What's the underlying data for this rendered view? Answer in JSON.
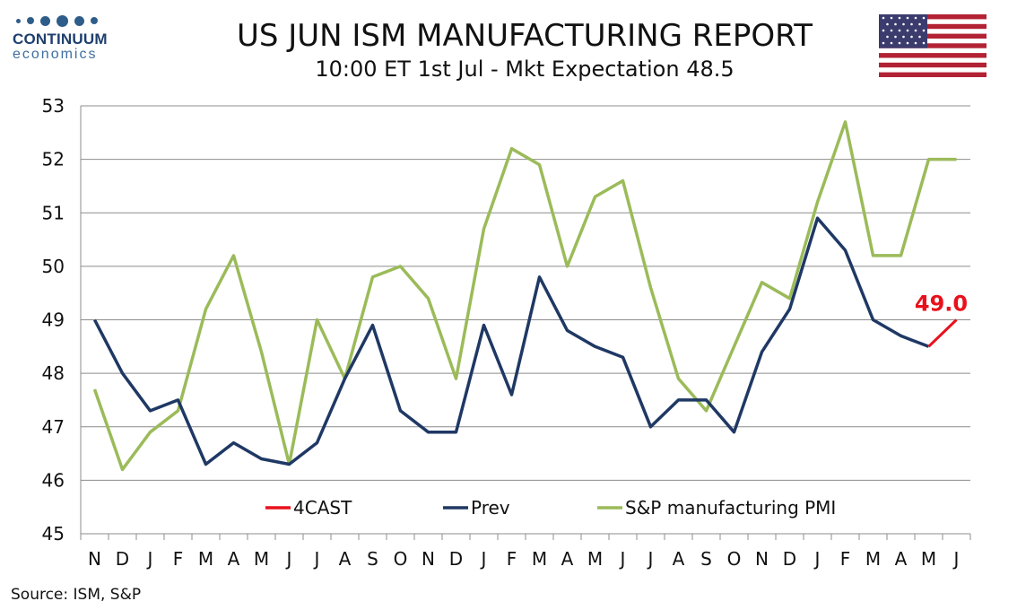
{
  "header": {
    "logo_name": "CONTINUUM",
    "logo_sub": "economics",
    "title": "US JUN ISM MANUFACTURING REPORT",
    "subtitle": "10:00 ET 1st Jul - Mkt Expectation 48.5",
    "flag_icon": "us-flag-icon",
    "logo_dot_color": "#2f5d8a"
  },
  "source": "Source: ISM, S&P",
  "chart_data": {
    "type": "line",
    "categories": [
      "N",
      "D",
      "J",
      "F",
      "M",
      "A",
      "M",
      "J",
      "J",
      "A",
      "S",
      "O",
      "N",
      "D",
      "J",
      "F",
      "M",
      "A",
      "M",
      "J",
      "J",
      "A",
      "S",
      "O",
      "N",
      "D",
      "J",
      "F",
      "M",
      "A",
      "M",
      "J"
    ],
    "ylim": [
      45,
      53
    ],
    "yticks": [
      "45",
      "46",
      "47",
      "48",
      "49",
      "50",
      "51",
      "52",
      "53"
    ],
    "grid": "horizontal",
    "legend_position": "bottom-inside",
    "annotation": "49.0",
    "series": [
      {
        "name": "4CAST",
        "color": "#e8111b",
        "values": [
          null,
          null,
          null,
          null,
          null,
          null,
          null,
          null,
          null,
          null,
          null,
          null,
          null,
          null,
          null,
          null,
          null,
          null,
          null,
          null,
          null,
          null,
          null,
          null,
          null,
          null,
          null,
          null,
          null,
          null,
          48.5,
          49.0
        ]
      },
      {
        "name": "Prev",
        "color": "#1f3864",
        "values": [
          49.0,
          48.0,
          47.3,
          47.5,
          46.3,
          46.7,
          46.4,
          46.3,
          46.7,
          47.9,
          48.9,
          47.3,
          46.9,
          46.9,
          48.9,
          47.6,
          49.8,
          48.8,
          48.5,
          48.3,
          47.0,
          47.5,
          47.5,
          46.9,
          48.4,
          49.2,
          50.9,
          50.3,
          49.0,
          48.7,
          48.5,
          null
        ]
      },
      {
        "name": "S&P manufacturing PMI",
        "color": "#9bbb59",
        "values": [
          47.7,
          46.2,
          46.9,
          47.3,
          49.2,
          50.2,
          48.4,
          46.3,
          49.0,
          47.9,
          49.8,
          50.0,
          49.4,
          47.9,
          50.7,
          52.2,
          51.9,
          50.0,
          51.3,
          51.6,
          49.6,
          47.9,
          47.3,
          48.5,
          49.7,
          49.4,
          51.2,
          52.7,
          50.2,
          50.2,
          52.0,
          52.0
        ]
      }
    ]
  }
}
